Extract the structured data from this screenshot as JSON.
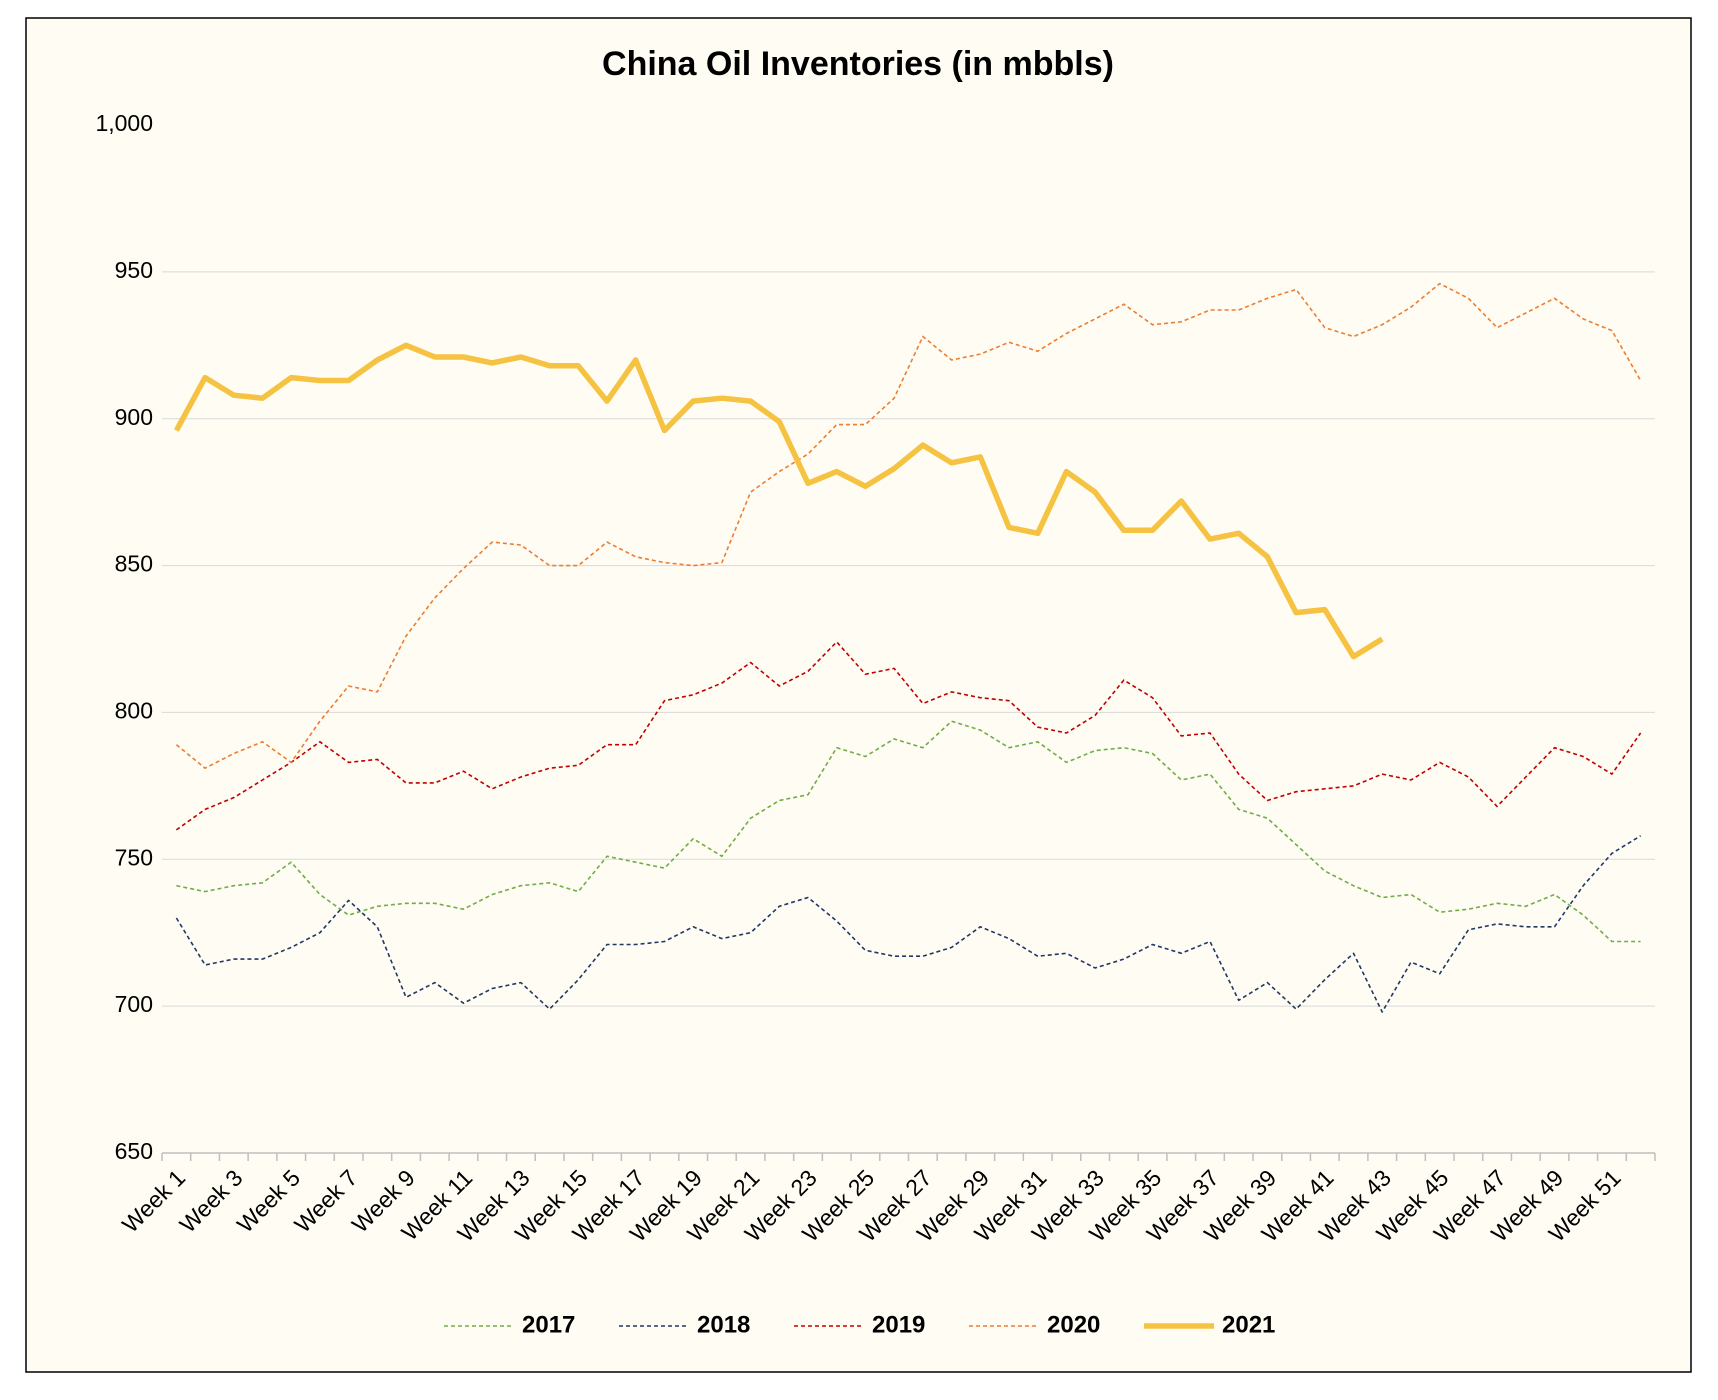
{
  "chart_data": {
    "type": "line",
    "title": "China Oil Inventories (in mbbls)",
    "categories": [
      "Week 1",
      null,
      "Week 3",
      null,
      "Week 5",
      null,
      "Week 7",
      null,
      "Week 9",
      null,
      "Week 11",
      null,
      "Week 13",
      null,
      "Week 15",
      null,
      "Week 17",
      null,
      "Week 19",
      null,
      "Week 21",
      null,
      "Week 23",
      null,
      "Week 25",
      null,
      "Week 27",
      null,
      "Week 29",
      null,
      "Week 31",
      null,
      "Week 33",
      null,
      "Week 35",
      null,
      "Week 37",
      null,
      "Week 39",
      null,
      "Week 41",
      null,
      "Week 43",
      null,
      "Week 45",
      null,
      "Week 47",
      null,
      "Week 49",
      null,
      "Week 51",
      null
    ],
    "series": [
      {
        "name": "2017",
        "color": "#70ad47",
        "dash": true,
        "values": [
          741,
          739,
          741,
          742,
          749,
          738,
          731,
          734,
          735,
          735,
          733,
          738,
          741,
          742,
          739,
          751,
          749,
          747,
          757,
          751,
          764,
          770,
          772,
          788,
          785,
          791,
          788,
          797,
          794,
          788,
          790,
          783,
          787,
          788,
          786,
          777,
          779,
          767,
          764,
          755,
          746,
          741,
          737,
          738,
          732,
          733,
          735,
          734,
          738,
          731,
          722,
          722
        ]
      },
      {
        "name": "2018",
        "color": "#203864",
        "dash": true,
        "values": [
          730,
          714,
          716,
          716,
          720,
          725,
          736,
          727,
          703,
          708,
          701,
          706,
          708,
          699,
          709,
          721,
          721,
          722,
          727,
          723,
          725,
          734,
          737,
          729,
          719,
          717,
          717,
          720,
          727,
          723,
          717,
          718,
          713,
          716,
          721,
          718,
          722,
          702,
          708,
          699,
          709,
          718,
          698,
          715,
          711,
          726,
          728,
          727,
          727,
          741,
          752,
          758
        ]
      },
      {
        "name": "2019",
        "color": "#c00000",
        "dash": true,
        "values": [
          760,
          767,
          771,
          777,
          783,
          790,
          783,
          784,
          776,
          776,
          780,
          774,
          778,
          781,
          782,
          789,
          789,
          804,
          806,
          810,
          817,
          809,
          814,
          824,
          813,
          815,
          803,
          807,
          805,
          804,
          795,
          793,
          799,
          811,
          805,
          792,
          793,
          779,
          770,
          773,
          774,
          775,
          779,
          777,
          783,
          778,
          768,
          778,
          788,
          785,
          779,
          793
        ]
      },
      {
        "name": "2020",
        "color": "#ed7d31",
        "dash": true,
        "values": [
          789,
          781,
          786,
          790,
          783,
          797,
          809,
          807,
          826,
          839,
          849,
          858,
          857,
          850,
          850,
          858,
          853,
          851,
          850,
          851,
          875,
          882,
          888,
          898,
          898,
          907,
          928,
          920,
          922,
          926,
          923,
          929,
          934,
          939,
          932,
          933,
          937,
          937,
          941,
          944,
          931,
          928,
          932,
          938,
          946,
          941,
          931,
          936,
          941,
          934,
          930,
          913
        ]
      },
      {
        "name": "2021",
        "color": "#f5c242",
        "dash": false,
        "values": [
          896,
          914,
          908,
          907,
          914,
          913,
          913,
          920,
          925,
          921,
          921,
          919,
          921,
          918,
          918,
          906,
          920,
          896,
          906,
          907,
          906,
          899,
          878,
          882,
          877,
          883,
          891,
          885,
          887,
          863,
          861,
          882,
          875,
          862,
          862,
          872,
          859,
          861,
          853,
          834,
          835,
          819,
          825,
          null,
          null,
          null,
          null,
          null,
          null,
          null,
          null,
          null
        ]
      }
    ],
    "ylim": [
      650,
      1000
    ],
    "yticks": [
      650,
      700,
      750,
      800,
      850,
      900,
      950,
      {
        "value": 1000,
        "label": "1,000"
      }
    ],
    "grid": true,
    "legend": "bottom"
  }
}
